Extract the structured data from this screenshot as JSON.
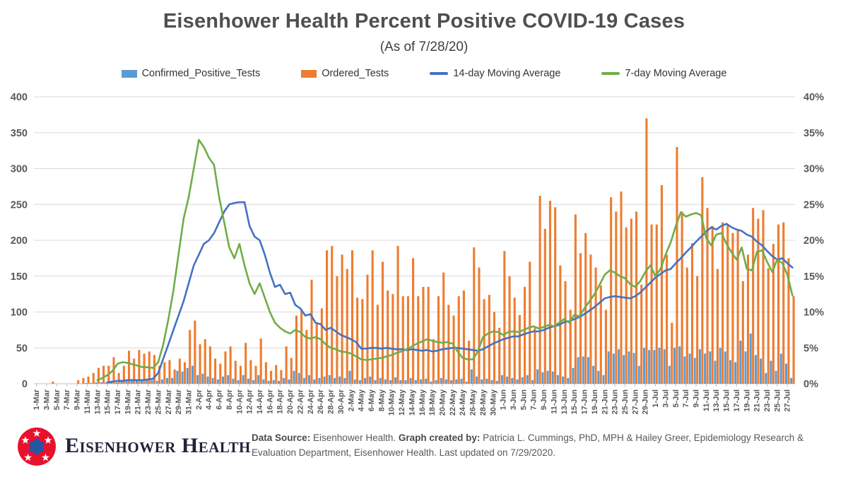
{
  "header": {
    "title": "Eisenhower Health Percent Positive COVID-19 Cases",
    "subtitle": "(As of 7/28/20)"
  },
  "footer": {
    "logo_text": "Eisenhower Health",
    "data_source_label": "Data Source:",
    "data_source_text": " Eisenhower Health. ",
    "created_by_label": "Graph created by:",
    "created_by_text": " Patricia L. Cummings, PhD, MPH & Hailey Greer, Epidemiology Research & Evaluation Department, Eisenhower Health. Last updated on 7/29/2020."
  },
  "colors": {
    "grid": "#D9D9D9",
    "axis_line": "#BFBFBF",
    "axis_text": "#595959",
    "logo_red": "#E8112D",
    "logo_blue": "#2456A4"
  },
  "chart_data": {
    "type": "bar",
    "subtype": "combo-bar-line",
    "title": "Eisenhower Health Percent Positive COVID-19 Cases",
    "xlabel": "",
    "ylabel_left": "",
    "ylabel_right": "",
    "ylim": [
      0,
      400
    ],
    "y2lim": [
      0,
      40
    ],
    "grid": "horizontal",
    "legend_position": "top",
    "x_tick_every": 2,
    "y_left_ticks": [
      "0",
      "50",
      "100",
      "150",
      "200",
      "250",
      "300",
      "350",
      "400"
    ],
    "y_right_ticks": [
      "0%",
      "5%",
      "10%",
      "15%",
      "20%",
      "25%",
      "30%",
      "35%",
      "40%"
    ],
    "x": [
      "1-Mar",
      "2-Mar",
      "3-Mar",
      "4-Mar",
      "5-Mar",
      "6-Mar",
      "7-Mar",
      "8-Mar",
      "9-Mar",
      "10-Mar",
      "11-Mar",
      "12-Mar",
      "13-Mar",
      "14-Mar",
      "15-Mar",
      "16-Mar",
      "17-Mar",
      "18-Mar",
      "19-Mar",
      "20-Mar",
      "21-Mar",
      "22-Mar",
      "23-Mar",
      "24-Mar",
      "25-Mar",
      "26-Mar",
      "27-Mar",
      "28-Mar",
      "29-Mar",
      "30-Mar",
      "31-Mar",
      "1-Apr",
      "2-Apr",
      "3-Apr",
      "4-Apr",
      "5-Apr",
      "6-Apr",
      "7-Apr",
      "8-Apr",
      "9-Apr",
      "10-Apr",
      "11-Apr",
      "12-Apr",
      "13-Apr",
      "14-Apr",
      "15-Apr",
      "16-Apr",
      "17-Apr",
      "18-Apr",
      "19-Apr",
      "20-Apr",
      "21-Apr",
      "22-Apr",
      "23-Apr",
      "24-Apr",
      "25-Apr",
      "26-Apr",
      "27-Apr",
      "28-Apr",
      "29-Apr",
      "30-Apr",
      "1-May",
      "2-May",
      "3-May",
      "4-May",
      "5-May",
      "6-May",
      "7-May",
      "8-May",
      "9-May",
      "10-May",
      "11-May",
      "12-May",
      "13-May",
      "14-May",
      "15-May",
      "16-May",
      "17-May",
      "18-May",
      "19-May",
      "20-May",
      "21-May",
      "22-May",
      "23-May",
      "24-May",
      "25-May",
      "26-May",
      "27-May",
      "28-May",
      "29-May",
      "30-May",
      "31-May",
      "1-Jun",
      "2-Jun",
      "3-Jun",
      "4-Jun",
      "5-Jun",
      "6-Jun",
      "7-Jun",
      "8-Jun",
      "9-Jun",
      "10-Jun",
      "11-Jun",
      "12-Jun",
      "13-Jun",
      "14-Jun",
      "15-Jun",
      "16-Jun",
      "17-Jun",
      "18-Jun",
      "19-Jun",
      "20-Jun",
      "21-Jun",
      "22-Jun",
      "23-Jun",
      "24-Jun",
      "25-Jun",
      "26-Jun",
      "27-Jun",
      "28-Jun",
      "29-Jun",
      "30-Jun",
      "1-Jul",
      "2-Jul",
      "3-Jul",
      "4-Jul",
      "5-Jul",
      "6-Jul",
      "7-Jul",
      "8-Jul",
      "9-Jul",
      "10-Jul",
      "11-Jul",
      "12-Jul",
      "13-Jul",
      "14-Jul",
      "15-Jul",
      "16-Jul",
      "17-Jul",
      "18-Jul",
      "19-Jul",
      "20-Jul",
      "21-Jul",
      "22-Jul",
      "23-Jul",
      "24-Jul",
      "25-Jul",
      "26-Jul",
      "27-Jul",
      "28-Jul"
    ],
    "series": [
      {
        "name": "Confirmed_Positive_Tests",
        "type": "bar",
        "axis": "left",
        "color": "#5B9BD5",
        "values": [
          0,
          0,
          0,
          0,
          0,
          0,
          0,
          0,
          0,
          0,
          1,
          1,
          2,
          2,
          2,
          3,
          2,
          3,
          4,
          4,
          5,
          4,
          6,
          5,
          4,
          6,
          8,
          8,
          18,
          17,
          22,
          25,
          12,
          14,
          10,
          8,
          6,
          10,
          12,
          7,
          5,
          12,
          7,
          5,
          12,
          6,
          4,
          5,
          4,
          8,
          6,
          18,
          15,
          8,
          12,
          6,
          8,
          10,
          12,
          8,
          10,
          8,
          18,
          6,
          5,
          8,
          10,
          5,
          8,
          6,
          5,
          9,
          5,
          5,
          8,
          5,
          6,
          7,
          3,
          5,
          8,
          6,
          5,
          6,
          7,
          3,
          20,
          10,
          6,
          7,
          5,
          4,
          12,
          10,
          8,
          6,
          9,
          12,
          5,
          20,
          16,
          18,
          17,
          12,
          10,
          8,
          22,
          37,
          38,
          37,
          25,
          18,
          12,
          45,
          42,
          48,
          40,
          45,
          43,
          25,
          50,
          47,
          47,
          50,
          48,
          25,
          50,
          52,
          38,
          42,
          36,
          48,
          42,
          45,
          32,
          50,
          45,
          33,
          30,
          60,
          45,
          70,
          40,
          35,
          15,
          32,
          18,
          42,
          28,
          8
        ]
      },
      {
        "name": "Ordered_Tests",
        "type": "bar",
        "axis": "left",
        "color": "#ED7D31",
        "values": [
          0,
          0,
          0,
          3,
          0,
          0,
          0,
          0,
          5,
          8,
          10,
          15,
          22,
          25,
          25,
          37,
          15,
          25,
          46,
          35,
          47,
          42,
          45,
          40,
          25,
          30,
          33,
          20,
          35,
          30,
          75,
          88,
          55,
          62,
          52,
          35,
          28,
          45,
          52,
          32,
          25,
          57,
          33,
          25,
          63,
          30,
          18,
          26,
          19,
          52,
          36,
          95,
          103,
          75,
          145,
          85,
          105,
          186,
          192,
          150,
          180,
          160,
          186,
          120,
          118,
          152,
          186,
          110,
          170,
          130,
          125,
          192,
          122,
          122,
          175,
          122,
          135,
          135,
          62,
          122,
          155,
          110,
          95,
          122,
          130,
          60,
          190,
          162,
          118,
          124,
          100,
          78,
          185,
          150,
          120,
          96,
          135,
          170,
          78,
          262,
          216,
          255,
          246,
          165,
          143,
          103,
          236,
          182,
          210,
          180,
          162,
          137,
          103,
          260,
          240,
          268,
          218,
          230,
          240,
          138,
          370,
          222,
          222,
          277,
          180,
          85,
          330,
          240,
          162,
          196,
          150,
          288,
          245,
          220,
          160,
          225,
          222,
          210,
          215,
          143,
          180,
          245,
          230,
          242,
          161,
          195,
          222,
          225,
          175,
          122
        ]
      },
      {
        "name": "14-day Moving Average",
        "type": "line",
        "axis": "right",
        "color": "#4472C4",
        "values_pct": [
          null,
          null,
          null,
          null,
          null,
          null,
          null,
          null,
          null,
          null,
          null,
          null,
          null,
          null,
          0.2,
          0.3,
          0.4,
          0.4,
          0.5,
          0.5,
          0.5,
          0.5,
          0.6,
          0.7,
          1.5,
          3.5,
          5.5,
          7.5,
          9.5,
          11.5,
          14.0,
          16.5,
          18.0,
          19.5,
          20.0,
          21.0,
          22.5,
          24.0,
          25.0,
          25.2,
          25.3,
          25.3,
          22.0,
          20.5,
          20.0,
          18.0,
          15.5,
          13.5,
          13.8,
          12.5,
          12.7,
          11.0,
          10.5,
          9.5,
          9.7,
          8.5,
          8.3,
          7.5,
          7.8,
          7.3,
          6.8,
          6.5,
          6.2,
          5.8,
          4.9,
          4.9,
          5.0,
          5.0,
          4.9,
          5.0,
          4.9,
          4.8,
          4.8,
          4.7,
          4.8,
          4.7,
          4.6,
          4.7,
          4.5,
          4.6,
          4.8,
          4.9,
          5.0,
          5.0,
          4.9,
          4.8,
          4.7,
          4.6,
          4.8,
          5.2,
          5.6,
          5.9,
          6.2,
          6.4,
          6.6,
          6.6,
          6.9,
          7.1,
          7.3,
          7.3,
          7.5,
          7.8,
          8.0,
          8.2,
          8.6,
          8.7,
          9.0,
          9.3,
          9.7,
          10.2,
          10.7,
          11.3,
          11.9,
          12.1,
          12.2,
          12.1,
          12.0,
          11.9,
          12.2,
          12.7,
          13.4,
          14.1,
          14.8,
          15.3,
          15.8,
          16.0,
          16.8,
          17.5,
          18.3,
          19.0,
          19.8,
          20.5,
          21.2,
          21.8,
          21.5,
          22.0,
          22.3,
          21.8,
          21.5,
          21.3,
          20.8,
          20.5,
          19.8,
          19.3,
          18.5,
          17.8,
          17.3,
          17.5,
          16.8,
          16.2
        ]
      },
      {
        "name": "7-day Moving Average",
        "type": "line",
        "axis": "right",
        "color": "#70AD47",
        "values_pct": [
          null,
          null,
          null,
          null,
          null,
          null,
          null,
          null,
          null,
          null,
          null,
          null,
          0.5,
          0.8,
          1.2,
          1.8,
          2.8,
          3.0,
          2.9,
          2.7,
          2.5,
          2.3,
          2.3,
          2.2,
          3.0,
          5.5,
          9.0,
          13.0,
          18.0,
          23.0,
          26.0,
          30.0,
          34.0,
          33.0,
          31.5,
          30.5,
          26.0,
          22.5,
          19.0,
          17.5,
          19.5,
          16.5,
          14.0,
          12.5,
          14.0,
          12.0,
          10.0,
          8.5,
          7.8,
          7.3,
          7.0,
          7.5,
          7.2,
          6.5,
          6.3,
          6.5,
          6.2,
          5.5,
          5.0,
          4.8,
          4.5,
          4.4,
          4.2,
          3.8,
          3.4,
          3.3,
          3.4,
          3.5,
          3.6,
          3.8,
          4.0,
          4.3,
          4.5,
          4.8,
          5.2,
          5.6,
          5.9,
          6.2,
          6.0,
          5.8,
          5.7,
          5.8,
          5.6,
          4.5,
          3.6,
          3.4,
          3.4,
          4.5,
          6.5,
          7.0,
          7.3,
          7.2,
          6.8,
          7.2,
          7.3,
          7.2,
          7.5,
          7.8,
          8.0,
          7.7,
          7.9,
          8.2,
          8.0,
          8.5,
          9.0,
          8.5,
          9.6,
          9.4,
          10.5,
          11.5,
          12.5,
          13.8,
          15.2,
          15.8,
          15.5,
          15.0,
          14.7,
          13.9,
          13.5,
          14.3,
          15.6,
          16.5,
          15.0,
          16.0,
          18.0,
          19.7,
          22.0,
          23.9,
          23.3,
          23.6,
          23.8,
          23.5,
          20.3,
          19.3,
          20.8,
          21.0,
          19.5,
          18.3,
          17.3,
          19.0,
          16.0,
          15.8,
          18.4,
          18.6,
          17.0,
          15.6,
          17.3,
          16.8,
          15.2,
          12.3
        ]
      }
    ]
  }
}
